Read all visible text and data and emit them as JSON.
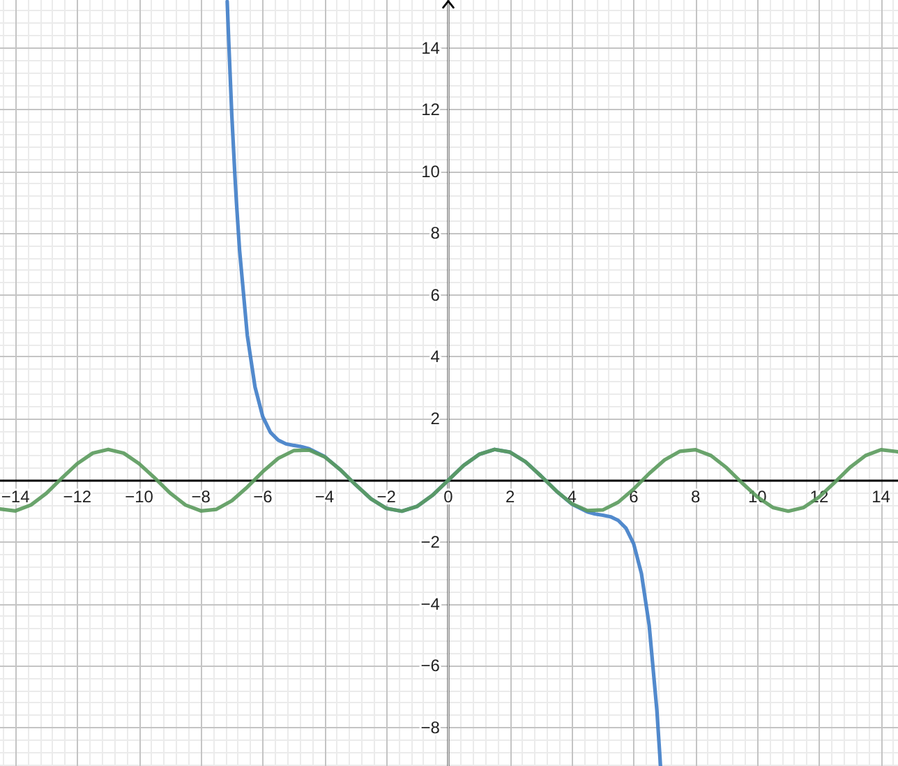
{
  "chart_data": {
    "type": "line",
    "series": [
      {
        "color": "#3f7dc8",
        "x": [
          -7.15,
          -7.1,
          -7,
          -6.9,
          -6.85,
          -6.75,
          -6.5,
          -6.25,
          -6,
          -5.75,
          -5.5,
          -5.25,
          -5,
          -4.75,
          -4.5,
          -4,
          -3.5,
          -3,
          -2.5,
          -2,
          -1.5,
          -1,
          -0.5,
          0,
          0.5,
          1,
          1.5,
          2,
          2.5,
          3,
          3.5,
          4,
          4.5,
          4.75,
          5,
          5.25,
          5.5,
          5.75,
          6,
          6.25,
          6.5,
          6.75,
          6.85,
          6.865
        ],
        "values": [
          15.5,
          14.2,
          11.8,
          9.85,
          8.98,
          7.45,
          4.69,
          3.02,
          2.06,
          1.55,
          1.3,
          1.18,
          1.13,
          1.09,
          1.02,
          0.77,
          0.35,
          -0.14,
          -0.6,
          -0.91,
          -1,
          -0.84,
          -0.48,
          0,
          0.48,
          0.84,
          1,
          0.91,
          0.6,
          0.14,
          -0.35,
          -0.77,
          -1.02,
          -1.09,
          -1.13,
          -1.18,
          -1.3,
          -1.55,
          -2.06,
          -3.02,
          -4.69,
          -7.45,
          -8.98,
          -9.24
        ]
      },
      {
        "color": "#5a9a5c",
        "x": [
          -14.5,
          -14,
          -13.5,
          -13,
          -12.5,
          -12,
          -11.5,
          -11,
          -10.5,
          -10,
          -9.5,
          -9,
          -8.5,
          -8,
          -7.5,
          -7,
          -6.5,
          -6,
          -5.5,
          -5,
          -4.5,
          -4,
          -3.5,
          -3,
          -2.5,
          -2,
          -1.5,
          -1,
          -0.5,
          0,
          0.5,
          1,
          1.5,
          2,
          2.5,
          3,
          3.5,
          4,
          4.5,
          5,
          5.5,
          6,
          6.5,
          7,
          7.5,
          8,
          8.5,
          9,
          9.5,
          10,
          10.5,
          11,
          11.5,
          12,
          12.5,
          13,
          13.5,
          14,
          14.5,
          14.55
        ],
        "values": [
          -0.93,
          -0.99,
          -0.8,
          -0.42,
          0.07,
          0.54,
          0.88,
          1,
          0.88,
          0.54,
          0.08,
          -0.41,
          -0.8,
          -0.99,
          -0.94,
          -0.66,
          -0.22,
          0.28,
          0.71,
          0.96,
          0.98,
          0.76,
          0.35,
          -0.14,
          -0.6,
          -0.91,
          -1,
          -0.84,
          -0.48,
          0,
          0.48,
          0.84,
          1,
          0.91,
          0.6,
          0.14,
          -0.35,
          -0.76,
          -0.98,
          -0.96,
          -0.71,
          -0.28,
          0.22,
          0.66,
          0.94,
          0.99,
          0.8,
          0.41,
          -0.08,
          -0.54,
          -0.88,
          -1,
          -0.88,
          -0.54,
          -0.07,
          0.42,
          0.8,
          0.99,
          0.93,
          0.92
        ]
      }
    ],
    "xlim": [
      -14.5,
      14.55
    ],
    "ylim": [
      -9.25,
      15.55
    ],
    "xticks": [
      {
        "value": -14,
        "label": "−14"
      },
      {
        "value": -12,
        "label": "−12"
      },
      {
        "value": -10,
        "label": "−10"
      },
      {
        "value": -8,
        "label": "−8"
      },
      {
        "value": -6,
        "label": "−6"
      },
      {
        "value": -4,
        "label": "−4"
      },
      {
        "value": -2,
        "label": "−2"
      },
      0,
      2,
      4,
      6,
      8,
      10,
      12,
      14
    ],
    "yticks": [
      {
        "value": -8,
        "label": "−8"
      },
      {
        "value": -6,
        "label": "−6"
      },
      {
        "value": -4,
        "label": "−4"
      },
      {
        "value": -2,
        "label": "−2"
      },
      2,
      4,
      6,
      8,
      10,
      12,
      14
    ],
    "grid": true
  }
}
